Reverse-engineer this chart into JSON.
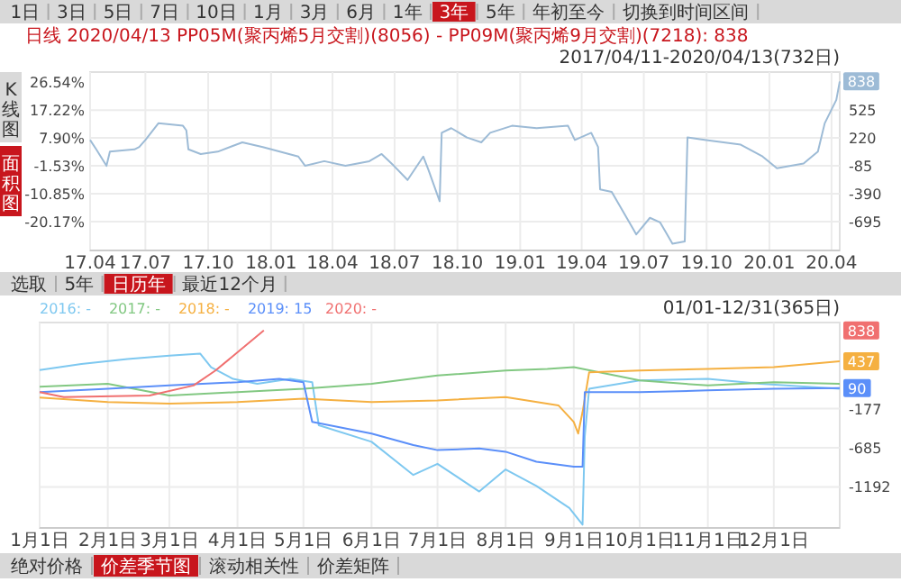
{
  "chart_data": [
    {
      "type": "other",
      "annotations": [
        "1日",
        "3日",
        "5日",
        "7日",
        "10日",
        "1月",
        "3月",
        "6月",
        "1年",
        "3年",
        "5年",
        "年初至今",
        "切换到时间区间"
      ]
    },
    {
      "type": "line",
      "title": "日线 2020/04/13 PP05M(聚丙烯5月交割)(8056) - PP09M(聚丙烯9月交割)(7218): 838",
      "subtitle": "2017/04/11-2020/04/13(732日)",
      "annotations": [
        "K线图",
        "面积图",
        {
          "text": "838",
          "y": 838
        }
      ],
      "x": [
        "2017-04-11",
        "2017-04-20",
        "2017-05-05",
        "2017-05-10",
        "2017-06-15",
        "2017-06-22",
        "2017-07-01",
        "2017-07-20",
        "2017-08-25",
        "2017-08-30",
        "2017-09-02",
        "2017-09-20",
        "2017-10-15",
        "2017-11-20",
        "2017-12-20",
        "2018-02-10",
        "2018-02-20",
        "2018-03-20",
        "2018-04-20",
        "2018-05-25",
        "2018-06-12",
        "2018-06-30",
        "2018-07-20",
        "2018-08-12",
        "2018-08-20",
        "2018-09-05",
        "2018-09-08",
        "2018-09-22",
        "2018-10-15",
        "2018-11-05",
        "2018-11-18",
        "2018-12-20",
        "2019-01-25",
        "2019-03-12",
        "2019-03-22",
        "2019-04-15",
        "2019-04-25",
        "2019-04-28",
        "2019-05-15",
        "2019-06-20",
        "2019-07-10",
        "2019-07-25",
        "2019-08-12",
        "2019-08-30",
        "2019-09-03",
        "2019-09-28",
        "2019-11-20",
        "2019-12-22",
        "2020-01-12",
        "2020-02-20",
        "2020-03-12",
        "2020-03-22",
        "2020-04-08",
        "2020-04-13"
      ],
      "series": [
        {
          "color": "#9dbbd6",
          "values": [
            198,
            95,
            -85,
            70,
            95,
            121,
            198,
            380,
            353,
            302,
            95,
            44,
            70,
            172,
            121,
            17,
            -85,
            -34,
            -85,
            -34,
            44,
            -85,
            -240,
            17,
            -137,
            -472,
            276,
            327,
            225,
            172,
            276,
            353,
            327,
            353,
            198,
            276,
            121,
            -343,
            -370,
            -834,
            -653,
            -704,
            -936,
            -912,
            225,
            198,
            147,
            17,
            -111,
            -60,
            70,
            380,
            636,
            838
          ]
        }
      ],
      "xlim": [
        "2017-04-11",
        "2020-04-13"
      ],
      "xticks": [
        {
          "value": "2017-04-11",
          "label": "17.04"
        },
        {
          "value": "2017-07-01",
          "label": "17.07"
        },
        {
          "value": "2017-10-01",
          "label": "17.10"
        },
        {
          "value": "2018-01-01",
          "label": "18.01"
        },
        {
          "value": "2018-04-01",
          "label": "18.04"
        },
        {
          "value": "2018-07-01",
          "label": "18.07"
        },
        {
          "value": "2018-10-01",
          "label": "18.10"
        },
        {
          "value": "2019-01-01",
          "label": "19.01"
        },
        {
          "value": "2019-04-01",
          "label": "19.04"
        },
        {
          "value": "2019-07-01",
          "label": "19.07"
        },
        {
          "value": "2019-10-01",
          "label": "19.10"
        },
        {
          "value": "2020-01-01",
          "label": "20.01"
        },
        {
          "value": "2020-04-01",
          "label": "20.04"
        }
      ],
      "ylim": [
        -1010,
        940
      ],
      "yticks": [
        525,
        220,
        -85,
        -390,
        -695
      ],
      "y2lim": [
        -29.8,
        29.79
      ],
      "y2ticks": [
        {
          "value": 26.54,
          "label": "26.54%"
        },
        {
          "value": 17.22,
          "label": "17.22%"
        },
        {
          "value": 7.9,
          "label": "7.90%"
        },
        {
          "value": -1.53,
          "label": "-1.53%"
        },
        {
          "value": -10.85,
          "label": "-10.85%"
        },
        {
          "value": -20.17,
          "label": "-20.17%"
        }
      ],
      "grid": true
    },
    {
      "type": "other",
      "annotations": [
        "选取",
        "5年",
        "日历年",
        "最近12个月"
      ]
    },
    {
      "type": "line",
      "subtitle": "01/01-12/31(365日)",
      "legend": "top left",
      "annotations": [
        {
          "text": "838",
          "y": 838
        },
        {
          "text": "437",
          "y": 437
        },
        {
          "text": "90",
          "y": 90
        }
      ],
      "series": [
        {
          "name": "2016: -",
          "color": "#7ec8f0",
          "x": [
            "--01-01",
            "--01-20",
            "--02-10",
            "--03-01",
            "--03-15",
            "--03-20",
            "--03-30",
            "--04-10",
            "--04-25",
            "--05-05",
            "--05-08",
            "--06-01",
            "--06-20",
            "--07-01",
            "--07-20",
            "--08-01",
            "--08-15",
            "--08-30",
            "--09-05",
            "--09-06",
            "--09-08",
            "--10-01",
            "--11-01",
            "--11-25",
            "--12-31"
          ],
          "values": [
            324,
            404,
            468,
            511,
            539,
            361,
            210,
            146,
            210,
            167,
            -392,
            -607,
            -1037,
            -893,
            -1252,
            -966,
            -1180,
            -1467,
            -1682,
            -536,
            81,
            189,
            210,
            146,
            81
          ]
        },
        {
          "name": "2017: -",
          "color": "#82c882",
          "x": [
            "--01-01",
            "--02-01",
            "--03-01",
            "--04-01",
            "--05-01",
            "--06-01",
            "--07-01",
            "--08-01",
            "--08-20",
            "--09-01",
            "--10-01",
            "--11-01",
            "--12-01",
            "--12-31"
          ],
          "values": [
            109,
            146,
            -5,
            38,
            81,
            146,
            253,
            318,
            339,
            361,
            189,
            124,
            167,
            146
          ]
        },
        {
          "name": "2018: -",
          "color": "#f5b041",
          "x": [
            "--01-01",
            "--02-01",
            "--03-01",
            "--04-01",
            "--05-01",
            "--06-01",
            "--07-01",
            "--08-01",
            "--08-25",
            "--09-01",
            "--09-03",
            "--09-05",
            "--09-08",
            "--10-01",
            "--11-01",
            "--12-01",
            "--12-31"
          ],
          "values": [
            -33,
            -91,
            -112,
            -91,
            -48,
            -91,
            -70,
            -27,
            -134,
            -349,
            -500,
            -220,
            296,
            318,
            339,
            361,
            437
          ]
        },
        {
          "name": "2019: 15",
          "color": "#5b8ff9",
          "x": [
            "--01-01",
            "--02-01",
            "--03-01",
            "--04-01",
            "--04-20",
            "--05-01",
            "--05-05",
            "--06-01",
            "--06-20",
            "--07-01",
            "--07-20",
            "--08-01",
            "--08-15",
            "--09-01",
            "--09-05",
            "--09-06",
            "--10-01",
            "--11-01",
            "--12-01",
            "--12-31"
          ],
          "values": [
            38,
            81,
            124,
            167,
            210,
            167,
            -349,
            -500,
            -650,
            -715,
            -693,
            -736,
            -865,
            -930,
            -930,
            38,
            38,
            60,
            81,
            90
          ]
        },
        {
          "name": "2020: -",
          "color": "#f07070",
          "x": [
            "--01-01",
            "--01-12",
            "--02-20",
            "--03-12",
            "--03-22",
            "--04-13"
          ],
          "values": [
            38,
            -27,
            -5,
            124,
            318,
            838
          ]
        }
      ],
      "xlim": [
        "--01-01",
        "--12-31"
      ],
      "xticks": [
        {
          "value": "--01-01",
          "label": "1月1日"
        },
        {
          "value": "--02-01",
          "label": "2月1日"
        },
        {
          "value": "--03-01",
          "label": "3月1日"
        },
        {
          "value": "--04-01",
          "label": "4月1日"
        },
        {
          "value": "--05-01",
          "label": "5月1日"
        },
        {
          "value": "--06-01",
          "label": "6月1日"
        },
        {
          "value": "--07-01",
          "label": "7月1日"
        },
        {
          "value": "--08-01",
          "label": "8月1日"
        },
        {
          "value": "--09-01",
          "label": "9月1日"
        },
        {
          "value": "--10-01",
          "label": "10月1日"
        },
        {
          "value": "--11-01",
          "label": "11月1日"
        },
        {
          "value": "--12-01",
          "label": "12月1日"
        }
      ],
      "ylim": [
        -1725,
        941
      ],
      "yticks": [
        -177,
        -685,
        -1192
      ],
      "grid": true
    },
    {
      "type": "other",
      "annotations": [
        "绝对价格",
        "价差季节图",
        "滚动相关性",
        "价差矩阵"
      ]
    }
  ]
}
